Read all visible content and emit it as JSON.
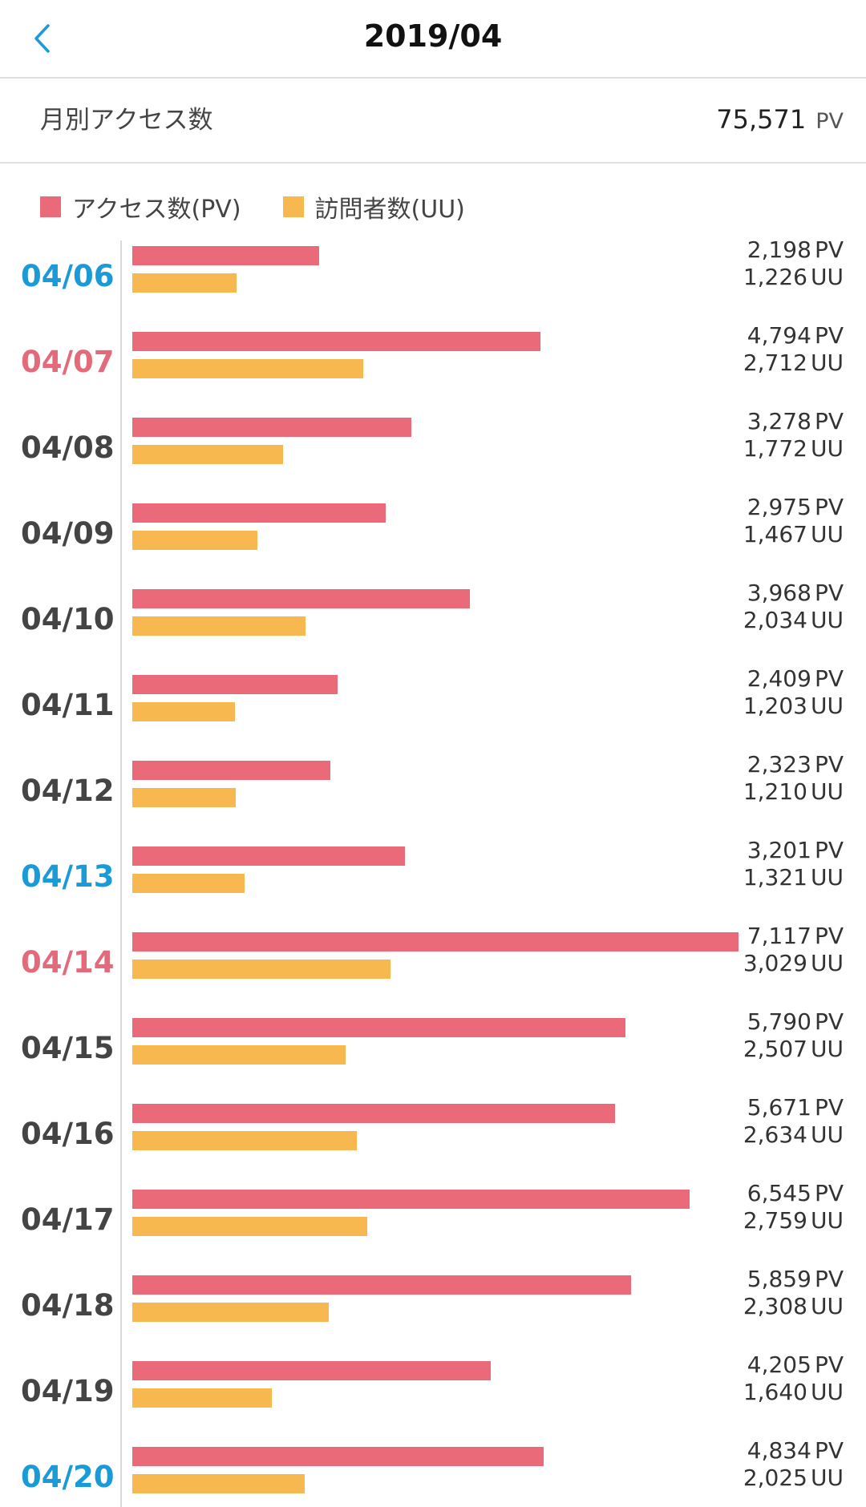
{
  "header": {
    "title": "2019/04"
  },
  "summary": {
    "label": "月別アクセス数",
    "value": "75,571",
    "unit": "PV"
  },
  "legend": {
    "pv_label": "アクセス数(PV)",
    "uu_label": "訪問者数(UU)"
  },
  "colors": {
    "pv": "#eb6a79",
    "uu": "#f6b84f",
    "saturday": "#1a9bd7",
    "sunday": "#e36a7a"
  },
  "icons": {
    "back": "chevron-left-icon"
  },
  "chart_data": {
    "type": "bar",
    "orientation": "horizontal",
    "pv_max": 7117,
    "categories": [
      "04/06",
      "04/07",
      "04/08",
      "04/09",
      "04/10",
      "04/11",
      "04/12",
      "04/13",
      "04/14",
      "04/15",
      "04/16",
      "04/17",
      "04/18",
      "04/19",
      "04/20"
    ],
    "day_type": [
      "sat",
      "sun",
      "",
      "",
      "",
      "",
      "",
      "sat",
      "sun",
      "",
      "",
      "",
      "",
      "",
      "sat"
    ],
    "series": [
      {
        "name": "アクセス数(PV)",
        "unit": "PV",
        "values": [
          2198,
          4794,
          3278,
          2975,
          3968,
          2409,
          2323,
          3201,
          7117,
          5790,
          5671,
          6545,
          5859,
          4205,
          4834
        ],
        "labels": [
          "2,198",
          "4,794",
          "3,278",
          "2,975",
          "3,968",
          "2,409",
          "2,323",
          "3,201",
          "7,117",
          "5,790",
          "5,671",
          "6,545",
          "5,859",
          "4,205",
          "4,834"
        ]
      },
      {
        "name": "訪問者数(UU)",
        "unit": "UU",
        "values": [
          1226,
          2712,
          1772,
          1467,
          2034,
          1203,
          1210,
          1321,
          3029,
          2507,
          2634,
          2759,
          2308,
          1640,
          2025
        ],
        "labels": [
          "1,226",
          "2,712",
          "1,772",
          "1,467",
          "2,034",
          "1,203",
          "1,210",
          "1,321",
          "3,029",
          "2,507",
          "2,634",
          "2,759",
          "2,308",
          "1,640",
          "2,025"
        ]
      }
    ]
  }
}
